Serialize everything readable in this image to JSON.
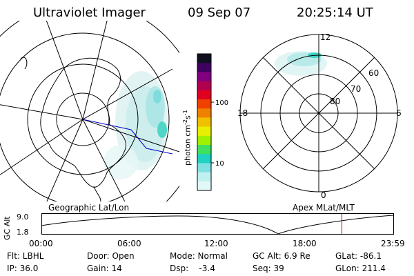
{
  "header": {
    "instrument": "Ultraviolet Imager",
    "date": "09 Sep 07",
    "time": "20:25:14 UT"
  },
  "colorbar": {
    "label": "photon cm",
    "label_sup1": "-2",
    "label_s": "s",
    "label_sup2": "-1",
    "ticks": [
      "100",
      "10"
    ],
    "colors": [
      "#101020",
      "#400060",
      "#800080",
      "#b00050",
      "#e00020",
      "#f04000",
      "#f08000",
      "#f0c000",
      "#e8f000",
      "#a0f000",
      "#40e060",
      "#20d0c0",
      "#80e0e0",
      "#c0f0f0",
      "#e0f8f8"
    ]
  },
  "geo_map": {
    "caption": "Geographic Lat/Lon"
  },
  "polar_map": {
    "caption": "Apex MLat/MLT",
    "mlt_labels": {
      "top": "12",
      "left": "18",
      "right": "6",
      "bottom": "0"
    },
    "lat_labels": [
      "60",
      "70",
      "80"
    ]
  },
  "timeline": {
    "axis_label": "GC Alt",
    "y_ticks": [
      "9.0",
      "1.8"
    ],
    "x_ticks": [
      "00:00",
      "06:00",
      "12:00",
      "18:00",
      "23:59"
    ],
    "marker_fraction": 0.853
  },
  "footer": {
    "rows": [
      [
        "Flt: LBHL",
        "Door: Open",
        "Mode: Normal",
        "GC Alt: 6.9 Re",
        "GLat: -86.1"
      ],
      [
        "IP: 36.0",
        "Gain: 14",
        "Dsp:    -3.4",
        "Seq: 39",
        "GLon: 211.4"
      ]
    ]
  }
}
